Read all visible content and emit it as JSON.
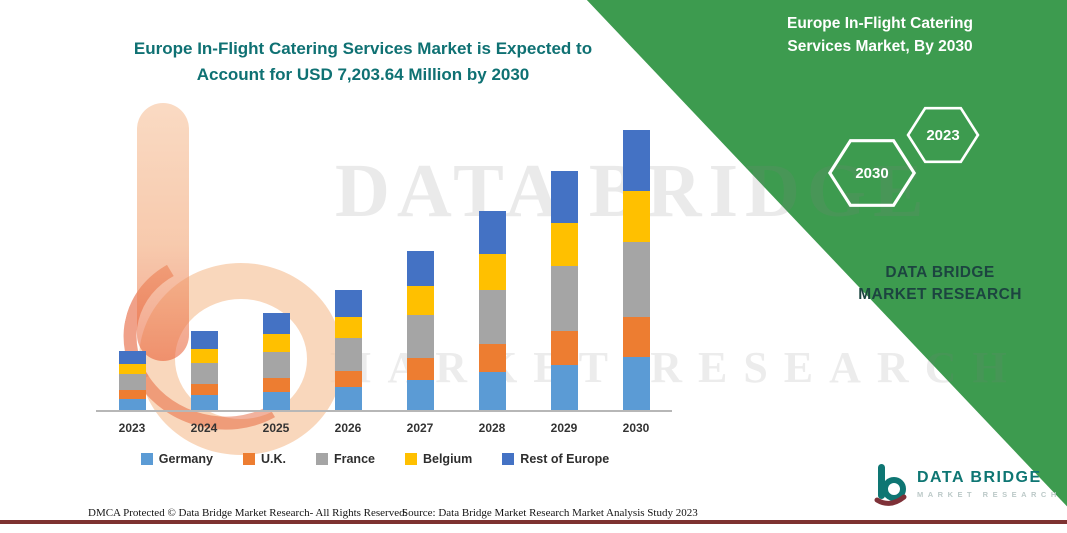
{
  "header": {
    "main_title": "Europe In-Flight Catering Services Market is Expected to Account for USD 7,203.64 Million by 2030",
    "panel_title": "Europe In-Flight Catering Services Market, By 2030"
  },
  "panel": {
    "hexagons": [
      "2030",
      "2023"
    ],
    "brand_caption": "DATA BRIDGE MARKET RESEARCH",
    "accent_green": "#3d9b4f"
  },
  "watermark": {
    "brand_text": "DATA BRIDGE",
    "sub_text": "MARKET RESEARCH"
  },
  "chart_data": {
    "type": "bar",
    "stacked": true,
    "title": "Europe In-Flight Catering Services Market is Expected to Account for USD 7,203.64 Million by 2030",
    "xlabel": "",
    "ylabel": "",
    "unit": "USD Million",
    "categories": [
      "2023",
      "2024",
      "2025",
      "2026",
      "2027",
      "2028",
      "2029",
      "2030"
    ],
    "series": [
      {
        "name": "Germany",
        "color": "#5B9BD5",
        "values": [
          289,
          384,
          475,
          584,
          774,
          974,
          1169,
          1368.69
        ]
      },
      {
        "name": "U.K.",
        "color": "#ED7D31",
        "values": [
          213,
          283,
          350,
          431,
          571,
          718,
          861,
          1008.51
        ]
      },
      {
        "name": "France",
        "color": "#A5A5A5",
        "values": [
          410,
          545,
          675,
          830,
          1100,
          1384,
          1661,
          1944.98
        ]
      },
      {
        "name": "Belgium",
        "color": "#FFC000",
        "values": [
          274,
          364,
          450,
          554,
          734,
          923,
          1107,
          1296.66
        ]
      },
      {
        "name": "Rest of Europe",
        "color": "#4472C4",
        "values": [
          334,
          444,
          550,
          676,
          896,
          1126,
          1352,
          1584.8
        ]
      }
    ],
    "totals": [
      1520,
      2020,
      2500,
      3075,
      4075,
      5125,
      6150,
      7203.64
    ],
    "ylim": [
      0,
      7500
    ],
    "grid": false,
    "y_axis_visible": false,
    "legend_position": "bottom"
  },
  "footer": {
    "dmca": "DMCA Protected © Data Bridge Market Research-  All Rights Reserved.",
    "source": "Source: Data Bridge Market Research  Market Analysis Study 2023"
  },
  "logo": {
    "name": "DATA BRIDGE",
    "tagline": "MARKET RESEARCH"
  }
}
